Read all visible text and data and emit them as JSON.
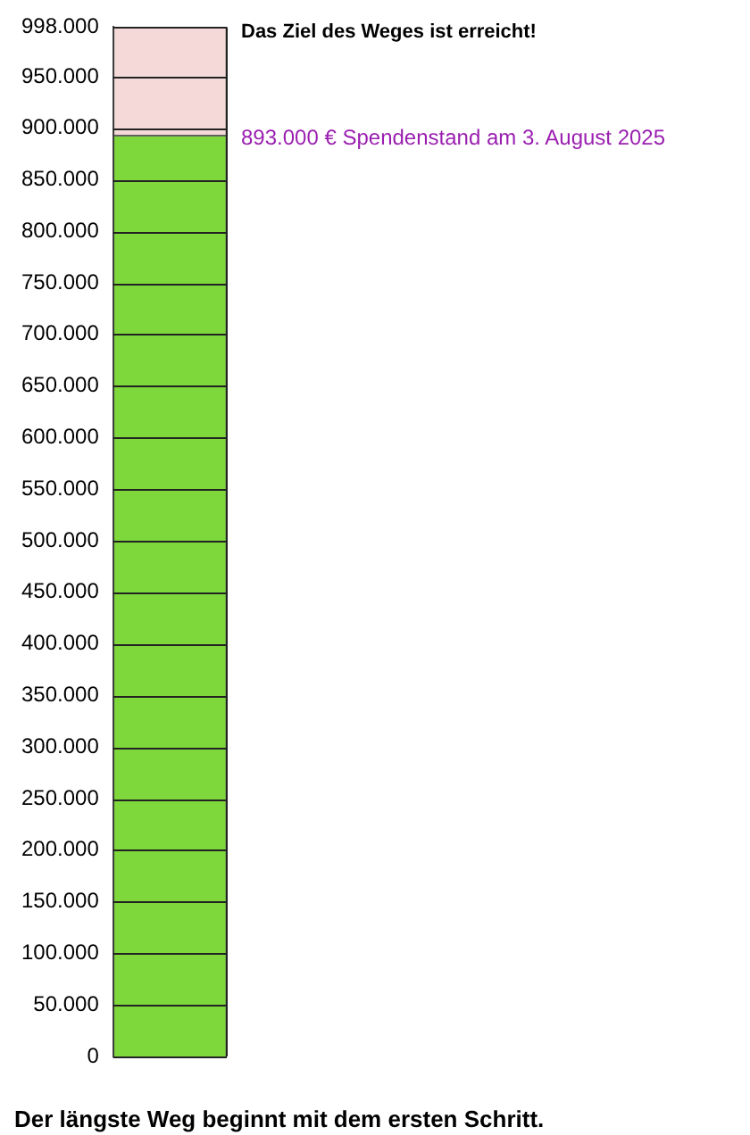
{
  "chart_data": {
    "type": "bar",
    "stacked": true,
    "categories": [
      null
    ],
    "series": [
      {
        "color": "#7ed83c",
        "values": [
          893000
        ]
      },
      {
        "color": "#f5d9d9",
        "values": [
          105000
        ]
      }
    ],
    "ylim": [
      0,
      998000
    ],
    "yticks": [
      {
        "value": 0,
        "label": "0"
      },
      {
        "value": 50000,
        "label": "50.000"
      },
      {
        "value": 100000,
        "label": "100.000"
      },
      {
        "value": 150000,
        "label": "150.000"
      },
      {
        "value": 200000,
        "label": "200.000"
      },
      {
        "value": 250000,
        "label": "250.000"
      },
      {
        "value": 300000,
        "label": "300.000"
      },
      {
        "value": 350000,
        "label": "350.000"
      },
      {
        "value": 400000,
        "label": "400.000"
      },
      {
        "value": 450000,
        "label": "450.000"
      },
      {
        "value": 500000,
        "label": "500.000"
      },
      {
        "value": 550000,
        "label": "550.000"
      },
      {
        "value": 600000,
        "label": "600.000"
      },
      {
        "value": 650000,
        "label": "650.000"
      },
      {
        "value": 700000,
        "label": "700.000"
      },
      {
        "value": 750000,
        "label": "750.000"
      },
      {
        "value": 800000,
        "label": "800.000"
      },
      {
        "value": 850000,
        "label": "850.000"
      },
      {
        "value": 900000,
        "label": "900.000"
      },
      {
        "value": 950000,
        "label": "950.000"
      },
      {
        "value": 998000,
        "label": "998.000"
      }
    ],
    "grid": "y",
    "tick_labels": "y",
    "annotations": [
      "Das Ziel des Weges ist erreicht!",
      "893.000 € Spendenstand am 3. August 2025",
      "Der längste Weg beginnt mit dem ersten Schritt."
    ]
  }
}
